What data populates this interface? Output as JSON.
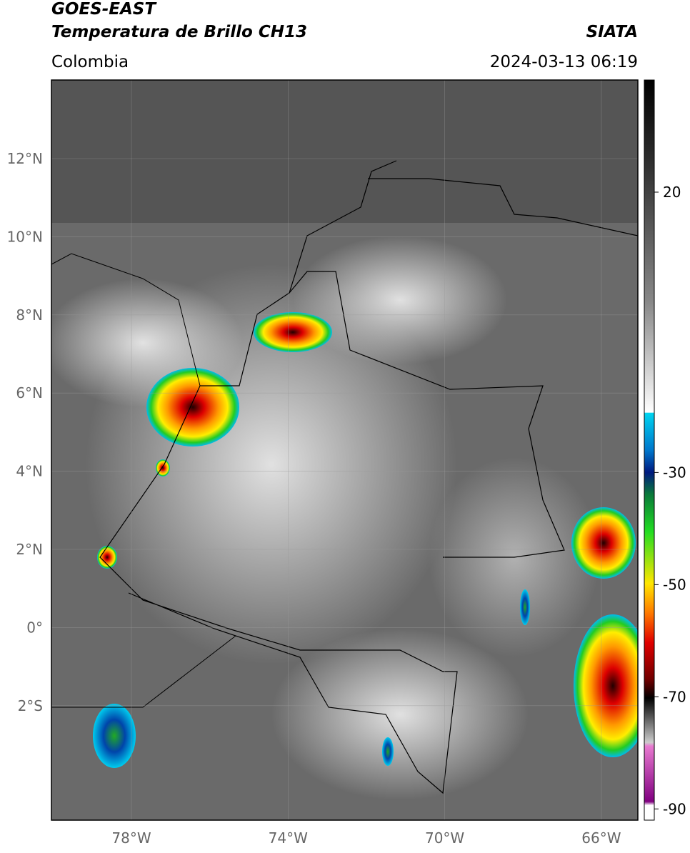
{
  "header": {
    "title": "GOES-EAST",
    "subtitle": "Temperatura de Brillo CH13",
    "region": "Colombia",
    "source": "SIATA",
    "datetime": "2024-03-13 06:19"
  },
  "map": {
    "lat_labels": [
      "12°N",
      "10°N",
      "8°N",
      "6°N",
      "4°N",
      "2°N",
      "0°",
      "2°S"
    ],
    "lon_labels": [
      "78°W",
      "74°W",
      "70°W",
      "66°W"
    ]
  },
  "colorbar": {
    "range": [
      -92,
      40
    ],
    "ticks": [
      20,
      -30,
      -50,
      -70,
      -90
    ]
  }
}
